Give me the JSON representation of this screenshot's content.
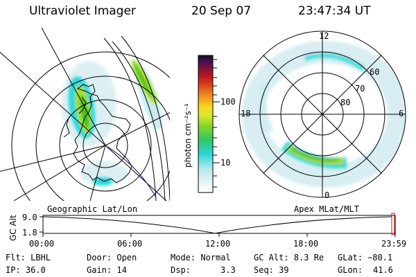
{
  "header": {
    "title": "Ultraviolet Imager",
    "date": "20 Sep 07",
    "time": "23:47:34 UT"
  },
  "colorbar": {
    "label": "photon cm⁻²s⁻¹",
    "ticks": [
      "100",
      "10"
    ]
  },
  "geo_panel": {
    "caption": "Geographic Lat/Lon"
  },
  "polar_panel": {
    "caption": "Apex MLat/MLT",
    "mlt_labels": {
      "top": "12",
      "left": "18",
      "right": "6",
      "bottom": "0"
    },
    "lat_labels": [
      "60",
      "70",
      "80"
    ]
  },
  "timeline": {
    "ylabel": "GC Alt",
    "y_ticks": [
      "9.0",
      "1.8"
    ],
    "x_ticks": [
      "00:00",
      "06:00",
      "12:00",
      "18:00",
      "23:59"
    ]
  },
  "info": {
    "flt": "Flt: LBHL",
    "ip": "IP: 36.0",
    "door": "Door: Open",
    "gain": "Gain: 14",
    "mode": "Mode: Normal",
    "dsp_label": "Dsp:",
    "dsp_value": "3.3",
    "gc_alt": "GC Alt: 8.3 Re",
    "seq": "Seq: 39",
    "glat_label": "GLat:",
    "glat_value": "−80.1",
    "glon_label": "GLon:",
    "glon_value": "41.6"
  },
  "colors": {
    "aurora_high": "#3fbf22",
    "aurora_mid": "#a8e02a",
    "aurora_low": "#2ad8d8",
    "aurora_faint": "#bfe8ef",
    "grid": "#000000"
  }
}
